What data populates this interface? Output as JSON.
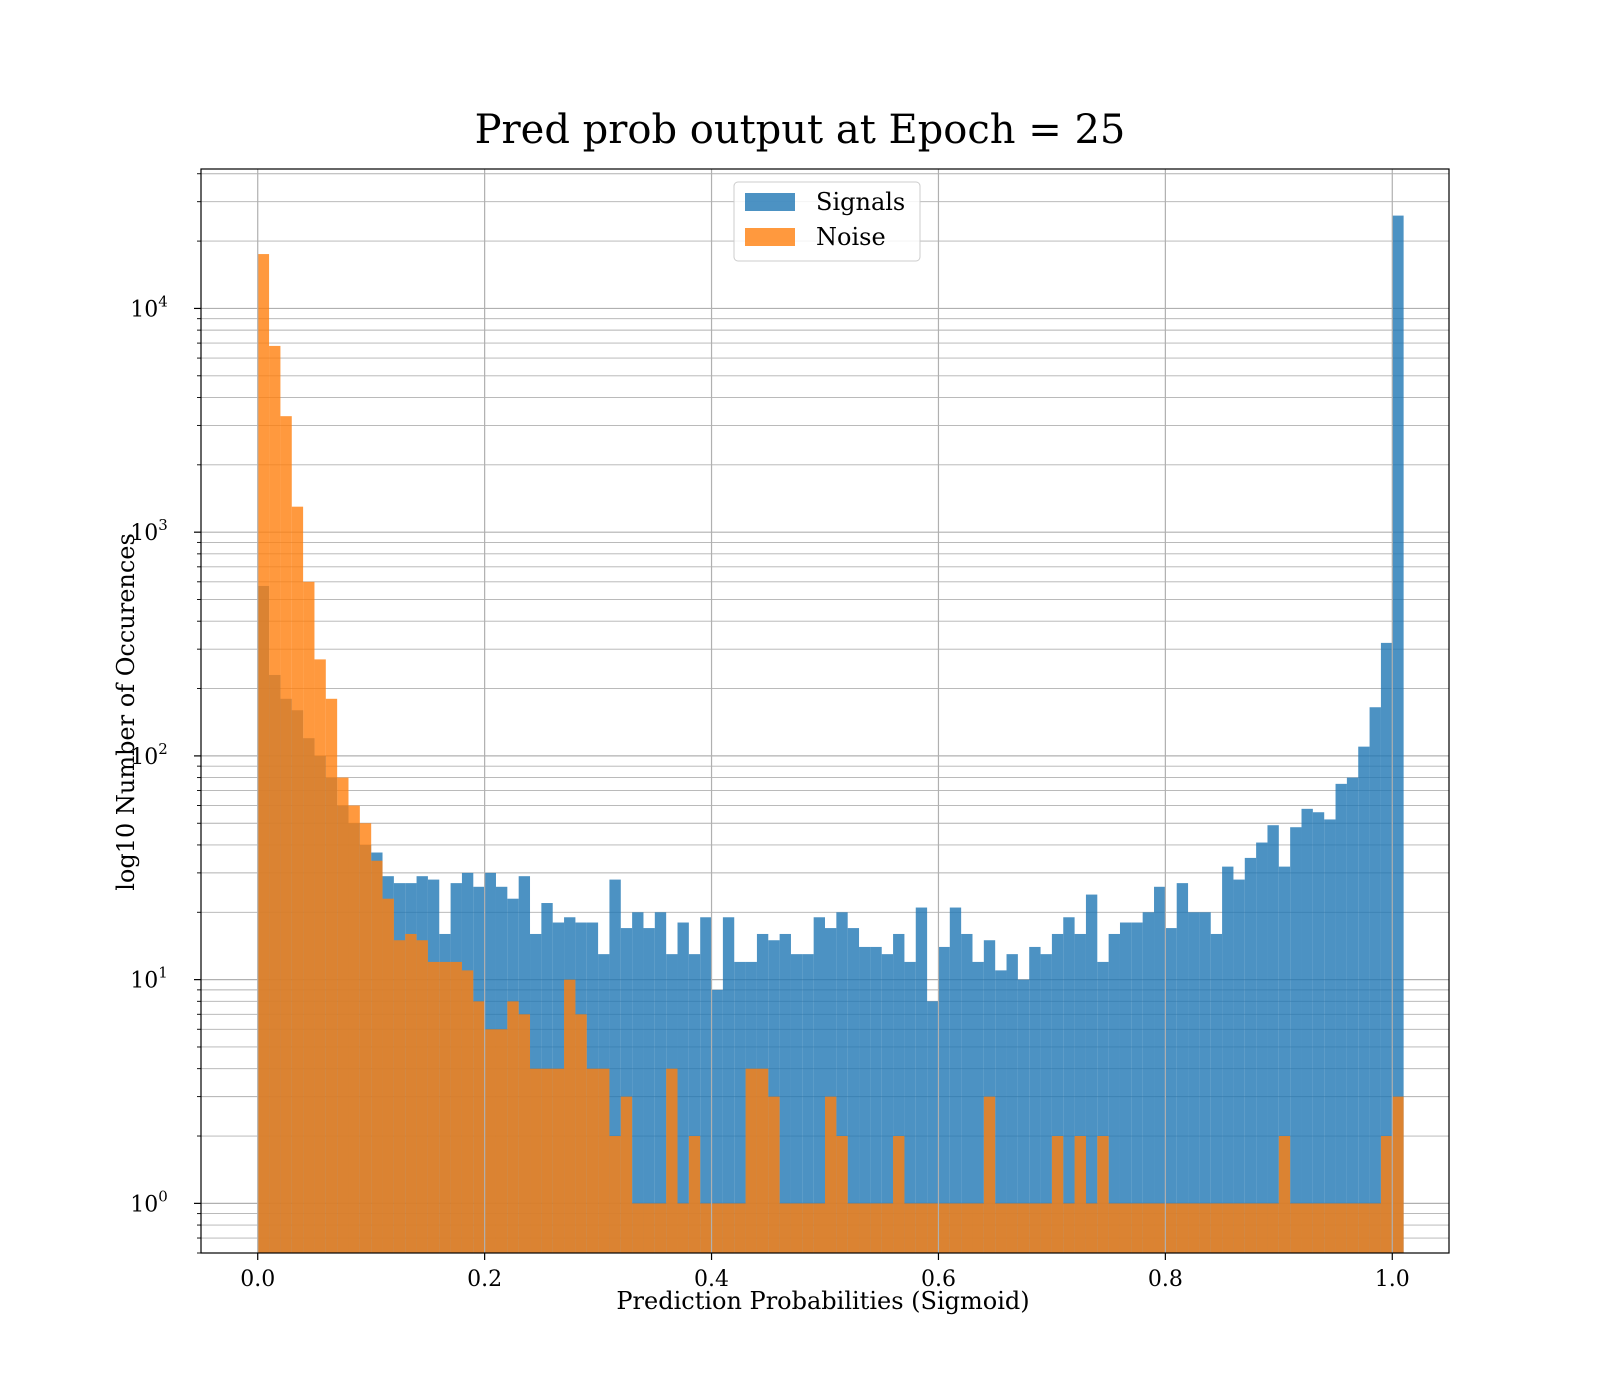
{
  "chart_data": {
    "type": "bar",
    "title": "Pred prob output at Epoch = 25",
    "xlabel": "Prediction Probabilities (Sigmoid)",
    "ylabel": "log10 Number of Occurences",
    "xlim": [
      -0.05,
      1.05
    ],
    "ylim": [
      0.6,
      42000
    ],
    "yscale": "log",
    "grid": true,
    "legend_position": "top-center",
    "bin_width": 0.01,
    "x_ticks": [
      "0.0",
      "0.2",
      "0.4",
      "0.6",
      "0.8",
      "1.0"
    ],
    "y_ticks": [
      {
        "base": "10",
        "exp": "0"
      },
      {
        "base": "10",
        "exp": "1"
      },
      {
        "base": "10",
        "exp": "2"
      },
      {
        "base": "10",
        "exp": "3"
      },
      {
        "base": "10",
        "exp": "4"
      }
    ],
    "series": [
      {
        "name": "Signals",
        "color": "#1f77b4",
        "values": [
          575,
          230,
          180,
          160,
          120,
          100,
          80,
          60,
          50,
          40,
          37,
          29,
          27,
          27,
          29,
          28,
          16,
          27,
          30,
          26,
          30,
          26,
          23,
          29,
          16,
          22,
          18,
          19,
          18,
          18,
          13,
          28,
          17,
          20,
          17,
          20,
          13,
          18,
          13,
          19,
          9,
          19,
          12,
          12,
          16,
          15,
          16,
          13,
          13,
          19,
          17,
          20,
          17,
          14,
          14,
          13,
          16,
          12,
          21,
          8,
          14,
          21,
          16,
          12,
          15,
          11,
          13,
          10,
          14,
          13,
          16,
          19,
          16,
          24,
          12,
          16,
          18,
          18,
          20,
          26,
          17,
          27,
          20,
          20,
          16,
          32,
          28,
          35,
          41,
          49,
          32,
          48,
          58,
          56,
          52,
          75,
          80,
          110,
          165,
          320,
          26000
        ]
      },
      {
        "name": "Noise",
        "color": "#ff7f0e",
        "values": [
          17500,
          6800,
          3300,
          1300,
          600,
          270,
          180,
          80,
          60,
          50,
          34,
          23,
          15,
          16,
          15,
          12,
          12,
          12,
          11,
          8,
          6,
          6,
          8,
          7,
          4,
          4,
          4,
          10,
          7,
          4,
          4,
          2,
          3,
          1,
          1,
          1,
          4,
          1,
          2,
          1,
          1,
          1,
          1,
          4,
          4,
          3,
          1,
          1,
          1,
          1,
          3,
          2,
          1,
          1,
          1,
          1,
          2,
          1,
          1,
          1,
          1,
          1,
          1,
          1,
          3,
          1,
          1,
          1,
          1,
          1,
          2,
          1,
          2,
          1,
          2,
          1,
          1,
          1,
          1,
          1,
          1,
          1,
          1,
          1,
          1,
          1,
          1,
          1,
          1,
          1,
          2,
          1,
          1,
          1,
          1,
          1,
          1,
          1,
          1,
          2,
          3
        ]
      }
    ]
  }
}
